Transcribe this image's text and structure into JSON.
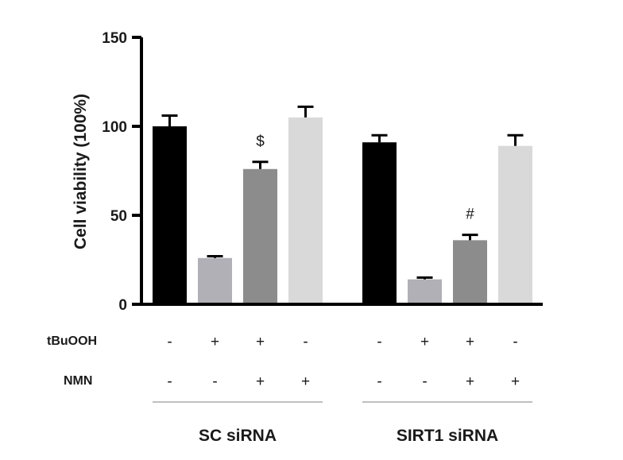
{
  "chart_data": {
    "type": "bar",
    "ylabel": "Cell viability (100%)",
    "ylim": [
      0,
      150
    ],
    "yticks": [
      "0",
      "50",
      "100",
      "150"
    ],
    "grid": false,
    "legend": "none",
    "groups": [
      {
        "label": "SC siRNA",
        "bars": [
          {
            "value": 100,
            "error": 6,
            "color": "#000000",
            "tbuooh": "-",
            "nmn": "-",
            "annotation": ""
          },
          {
            "value": 26,
            "error": 1,
            "color": "#b0b0b6",
            "tbuooh": "+",
            "nmn": "-",
            "annotation": ""
          },
          {
            "value": 76,
            "error": 4,
            "color": "#8c8c8c",
            "tbuooh": "+",
            "nmn": "+",
            "annotation": "$"
          },
          {
            "value": 105,
            "error": 6,
            "color": "#d9d9d9",
            "tbuooh": "-",
            "nmn": "+",
            "annotation": ""
          }
        ]
      },
      {
        "label": "SIRT1 siRNA",
        "bars": [
          {
            "value": 91,
            "error": 4,
            "color": "#000000",
            "tbuooh": "-",
            "nmn": "-",
            "annotation": ""
          },
          {
            "value": 14,
            "error": 1,
            "color": "#b0b0b6",
            "tbuooh": "+",
            "nmn": "-",
            "annotation": ""
          },
          {
            "value": 36,
            "error": 3,
            "color": "#8c8c8c",
            "tbuooh": "+",
            "nmn": "+",
            "annotation": "#"
          },
          {
            "value": 89,
            "error": 6,
            "color": "#d9d9d9",
            "tbuooh": "-",
            "nmn": "+",
            "annotation": ""
          }
        ]
      }
    ],
    "row_labels": {
      "tbuooh": "tBuOOH",
      "nmn": "NMN"
    }
  }
}
